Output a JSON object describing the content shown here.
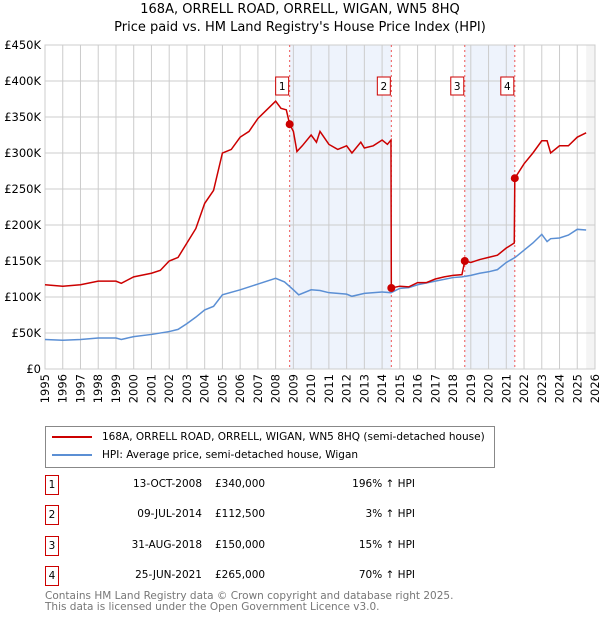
{
  "title": "168A, ORRELL ROAD, ORRELL, WIGAN, WN5 8HQ",
  "subtitle": "Price paid vs. HM Land Registry's House Price Index (HPI)",
  "chart_data": {
    "type": "line",
    "xlim": [
      1995,
      2026
    ],
    "ylim": [
      0,
      450000
    ],
    "yticks": [
      0,
      50000,
      100000,
      150000,
      200000,
      250000,
      300000,
      350000,
      400000,
      450000
    ],
    "ytick_labels": [
      "£0",
      "£50K",
      "£100K",
      "£150K",
      "£200K",
      "£250K",
      "£300K",
      "£350K",
      "£400K",
      "£450K"
    ],
    "xticks": [
      1995,
      1996,
      1997,
      1998,
      1999,
      2000,
      2001,
      2002,
      2003,
      2004,
      2005,
      2006,
      2007,
      2008,
      2009,
      2010,
      2011,
      2012,
      2013,
      2014,
      2015,
      2016,
      2017,
      2018,
      2019,
      2020,
      2021,
      2022,
      2023,
      2024,
      2025,
      2026
    ],
    "shaded": [
      [
        2008.79,
        2014.52
      ],
      [
        2018.66,
        2021.48
      ]
    ],
    "series": [
      {
        "name": "168A, ORRELL ROAD, ORRELL, WIGAN, WN5 8HQ (semi-detached house)",
        "color": "#cc0000",
        "x": [
          1995,
          1996,
          1997,
          1998,
          1999,
          1999.3,
          2000,
          2001,
          2001.5,
          2002,
          2002.5,
          2003,
          2003.5,
          2004,
          2004.5,
          2005,
          2005.5,
          2006,
          2006.5,
          2007,
          2007.5,
          2008,
          2008.3,
          2008.6,
          2008.79,
          2009,
          2009.2,
          2009.5,
          2010,
          2010.3,
          2010.5,
          2011,
          2011.5,
          2012,
          2012.3,
          2012.8,
          2013,
          2013.5,
          2014,
          2014.3,
          2014.5,
          2014.52,
          2015,
          2015.5,
          2016,
          2016.5,
          2017,
          2017.5,
          2018,
          2018.5,
          2018.66,
          2019,
          2019.5,
          2020,
          2020.5,
          2021,
          2021.45,
          2021.48,
          2022,
          2022.5,
          2023,
          2023.3,
          2023.5,
          2024,
          2024.5,
          2025,
          2025.5
        ],
        "y": [
          117000,
          115000,
          117000,
          122000,
          122000,
          119000,
          128000,
          133000,
          137000,
          150000,
          155000,
          175000,
          195000,
          230000,
          248000,
          300000,
          305000,
          322000,
          330000,
          348000,
          360000,
          372000,
          362000,
          360000,
          340000,
          330000,
          302000,
          310000,
          325000,
          315000,
          330000,
          312000,
          305000,
          310000,
          300000,
          315000,
          307000,
          310000,
          318000,
          312000,
          318000,
          112500,
          115000,
          114000,
          120000,
          120000,
          125000,
          128000,
          130000,
          131000,
          150000,
          148000,
          152000,
          155000,
          158000,
          168000,
          175000,
          265000,
          285000,
          300000,
          317000,
          317000,
          300000,
          310000,
          310000,
          322000,
          328000
        ]
      },
      {
        "name": "HPI: Average price, semi-detached house, Wigan",
        "color": "#5b8fd4",
        "x": [
          1995,
          1996,
          1997,
          1998,
          1999,
          1999.3,
          2000,
          2001,
          2002,
          2002.5,
          2003,
          2003.5,
          2004,
          2004.5,
          2005,
          2006,
          2007,
          2008,
          2008.5,
          2009,
          2009.3,
          2010,
          2010.5,
          2011,
          2012,
          2012.3,
          2013,
          2014,
          2014.5,
          2015,
          2015.5,
          2016,
          2017,
          2018,
          2018.5,
          2019,
          2019.5,
          2020,
          2020.5,
          2021,
          2021.5,
          2022,
          2022.5,
          2023,
          2023.3,
          2023.5,
          2024,
          2024.5,
          2025,
          2025.5
        ],
        "y": [
          41000,
          40000,
          41000,
          43000,
          43000,
          41000,
          45000,
          48000,
          52000,
          55000,
          63000,
          72000,
          82000,
          87000,
          103000,
          110000,
          118000,
          126000,
          121000,
          110000,
          103000,
          110000,
          109000,
          106000,
          104000,
          101000,
          105000,
          107000,
          106000,
          112000,
          113000,
          117000,
          122000,
          127000,
          128000,
          130000,
          133000,
          135000,
          138000,
          148000,
          155000,
          165000,
          175000,
          187000,
          177000,
          181000,
          182000,
          186000,
          194000,
          193000
        ]
      }
    ],
    "sales": [
      {
        "label": "1",
        "x": 2008.79,
        "y": 340000,
        "date": "13-OCT-2008",
        "price": "£340,000",
        "hpi": "196% ↑ HPI"
      },
      {
        "label": "2",
        "x": 2014.52,
        "y": 112500,
        "date": "09-JUL-2014",
        "price": "£112,500",
        "hpi": "3% ↑ HPI"
      },
      {
        "label": "3",
        "x": 2018.66,
        "y": 150000,
        "date": "31-AUG-2018",
        "price": "£150,000",
        "hpi": "15% ↑ HPI"
      },
      {
        "label": "4",
        "x": 2021.48,
        "y": 265000,
        "date": "25-JUN-2021",
        "price": "£265,000",
        "hpi": "70% ↑ HPI"
      }
    ]
  },
  "legend": {
    "red": "168A, ORRELL ROAD, ORRELL, WIGAN, WN5 8HQ (semi-detached house)",
    "blue": "HPI: Average price, semi-detached house, Wigan"
  },
  "footer": {
    "line1": "Contains HM Land Registry data © Crown copyright and database right 2025.",
    "line2": "This data is licensed under the Open Government Licence v3.0."
  }
}
